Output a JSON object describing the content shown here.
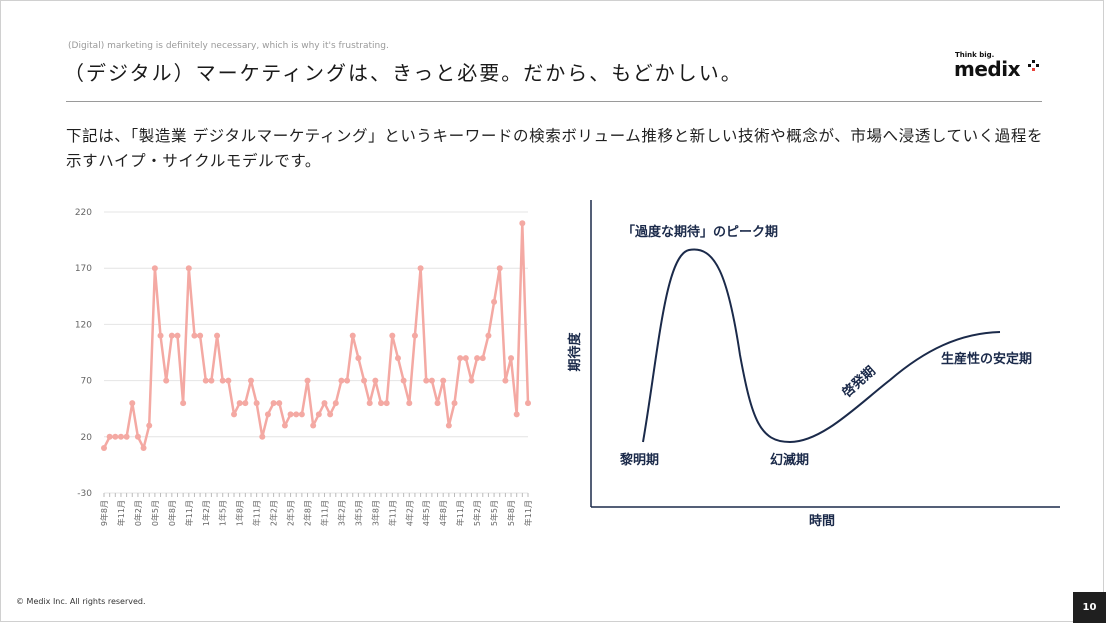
{
  "header": {
    "subtitle": "(Digital) marketing is definitely necessary, which is why it's frustrating.",
    "title": "（デジタル）マーケティングは、きっと必要。だから、もどかしい。"
  },
  "logo": {
    "tagline": "Think big.",
    "wordmark": "medix"
  },
  "description": "下記は、「製造業 デジタルマーケティング」というキーワードの検索ボリューム推移と新しい技術や概念が、市場へ浸透していく過程を示すハイプ・サイクルモデルです。",
  "chart_data": {
    "type": "line",
    "title": "",
    "xlabel": "",
    "ylabel": "",
    "ylim": [
      -30,
      220
    ],
    "yticks": [
      -30,
      20,
      70,
      120,
      170,
      220
    ],
    "grid": true,
    "color": "#f4a9a3",
    "x_tick_labels": [
      "2019年8月",
      "2019年11月",
      "2020年2月",
      "2020年5月",
      "2020年8月",
      "2020年11月",
      "2021年2月",
      "2021年5月",
      "2021年8月",
      "2021年11月",
      "2022年2月",
      "2022年5月",
      "2022年8月",
      "2022年11月",
      "2023年2月",
      "2023年5月",
      "2023年8月",
      "2023年11月",
      "2024年2月",
      "2024年5月",
      "2024年8月",
      "2024年11月",
      "2025年2月",
      "2025年5月",
      "2025年8月",
      "2025年11月"
    ],
    "values": [
      10,
      20,
      20,
      20,
      20,
      50,
      20,
      10,
      30,
      170,
      110,
      70,
      110,
      110,
      50,
      170,
      110,
      110,
      70,
      70,
      110,
      70,
      70,
      40,
      50,
      50,
      70,
      50,
      20,
      40,
      50,
      50,
      30,
      40,
      40,
      40,
      70,
      30,
      40,
      50,
      40,
      50,
      70,
      70,
      110,
      90,
      70,
      50,
      70,
      50,
      50,
      110,
      90,
      70,
      50,
      110,
      170,
      70,
      70,
      50,
      70,
      30,
      50,
      90,
      90,
      70,
      90,
      90,
      110,
      140,
      170,
      70,
      90,
      40,
      210,
      50
    ]
  },
  "hype_cycle": {
    "y_axis_label": "期待度",
    "x_axis_label": "時間",
    "phases": {
      "peak": "「過度な期待」のピーク期",
      "trigger": "黎明期",
      "trough": "幻滅期",
      "slope": "啓発期",
      "plateau": "生産性の安定期"
    },
    "curve_color": "#1b2a4a"
  },
  "footer": {
    "copyright": "© Medix Inc. All rights reserved.",
    "page_number": "10"
  }
}
